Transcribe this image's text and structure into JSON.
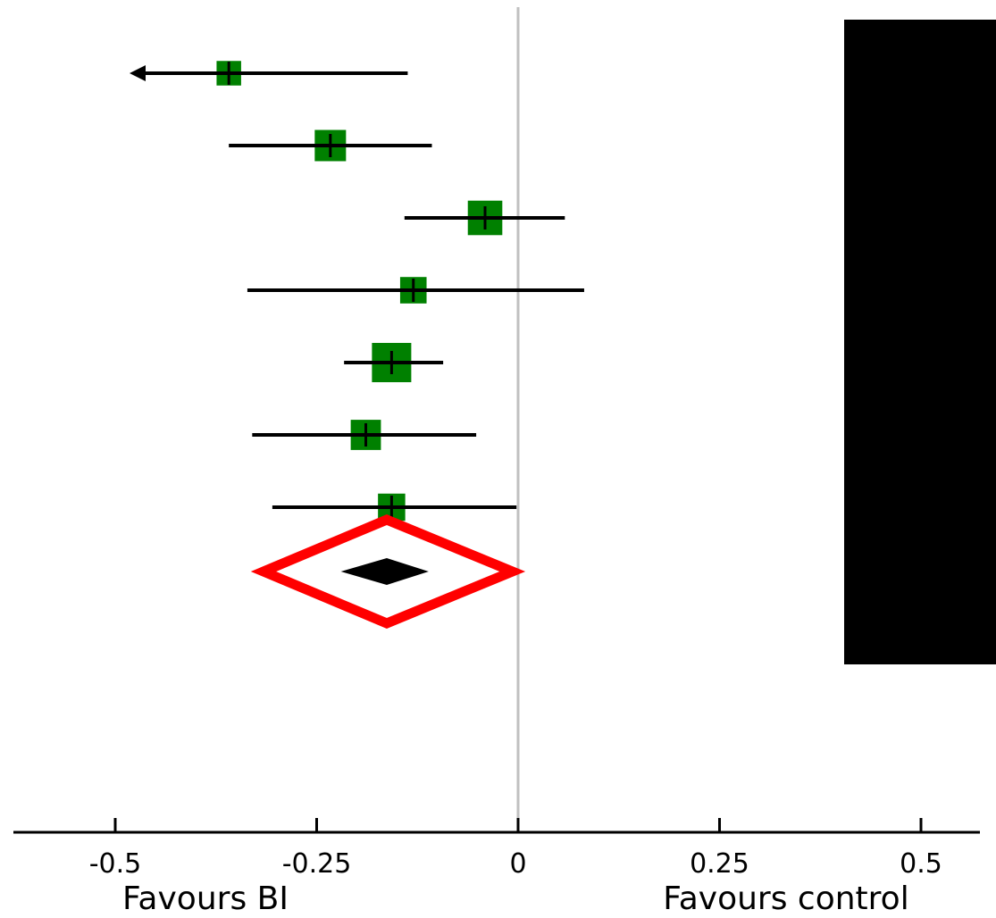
{
  "chart_data": {
    "type": "forest",
    "xlim": [
      -0.625,
      0.575
    ],
    "xticks": [
      -0.5,
      -0.25,
      0,
      0.25,
      0.5
    ],
    "xtick_labels": [
      "-0.5",
      "-0.25",
      "0",
      "0.25",
      "0.5"
    ],
    "favours_left": "Favours BI",
    "favours_right": "Favours control",
    "reference_line": 0,
    "studies": [
      {
        "estimate": -0.359,
        "ci_lower": -0.62,
        "ci_upper": -0.137,
        "weight": 0.45,
        "arrow_left": true
      },
      {
        "estimate": -0.233,
        "ci_lower": -0.359,
        "ci_upper": -0.107,
        "weight": 0.7
      },
      {
        "estimate": -0.041,
        "ci_lower": -0.141,
        "ci_upper": 0.058,
        "weight": 0.82
      },
      {
        "estimate": -0.13,
        "ci_lower": -0.336,
        "ci_upper": 0.082,
        "weight": 0.52
      },
      {
        "estimate": -0.157,
        "ci_lower": -0.216,
        "ci_upper": -0.093,
        "weight": 1.0
      },
      {
        "estimate": -0.189,
        "ci_lower": -0.33,
        "ci_upper": -0.052,
        "weight": 0.66
      },
      {
        "estimate": -0.157,
        "ci_lower": -0.305,
        "ci_upper": -0.002,
        "weight": 0.55
      }
    ],
    "pooled": {
      "estimate": -0.163,
      "ci_lower": -0.22,
      "ci_upper": -0.111
    },
    "highlight": {
      "center": -0.163,
      "ci_lower": -0.316,
      "ci_upper": -0.007
    },
    "colors": {
      "study_marker": "#008000",
      "highlight": "#ff0000",
      "ci_line": "#000000",
      "reference_line": "#c0c0c0",
      "redaction": "#000000"
    }
  }
}
